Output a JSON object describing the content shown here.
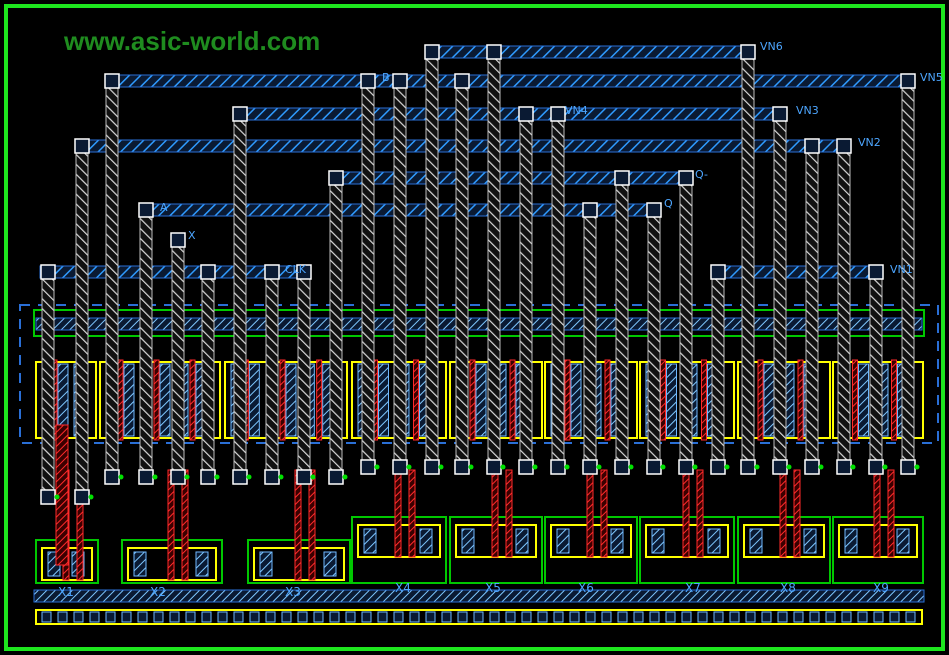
{
  "watermark": "www.asic-world.com",
  "colors": {
    "background": "#000000",
    "border": "#1ee61e",
    "metal2": "#1e90ff",
    "metal1": "#cfcfcf",
    "poly": "#c81414",
    "diffusion": "#ffff00",
    "well": "#00c800",
    "label": "#4da6ff",
    "watermark": "#1f8c1f"
  },
  "nets": {
    "vn6": "VN6",
    "vn5": "VN5",
    "vn3": "VN3",
    "vn4": "VN4",
    "vn2": "VN2",
    "vn1": "VN1",
    "b": "B",
    "q": "Q",
    "qbar": "Q-",
    "a": "A",
    "clk": "CLK",
    "x": "X"
  },
  "cells": [
    "X1",
    "X2",
    "X3",
    "X4",
    "X5",
    "X6",
    "X7",
    "X8",
    "X9"
  ]
}
